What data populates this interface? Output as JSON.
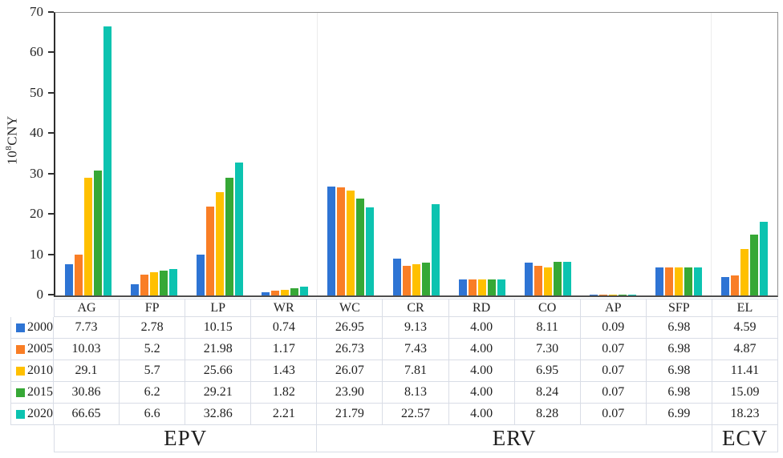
{
  "chart_data": {
    "type": "bar",
    "title": "",
    "ylabel": {
      "base": "10",
      "exp": "8",
      "unit": "CNY"
    },
    "ylim": [
      0,
      70
    ],
    "yticks": [
      0,
      10,
      20,
      30,
      40,
      50,
      60,
      70
    ],
    "grid": "vertical-group-separators-only",
    "legend_position": "table-left-column",
    "categories": [
      "AG",
      "FP",
      "LP",
      "WR",
      "WC",
      "CR",
      "RD",
      "CO",
      "AP",
      "SFP",
      "EL"
    ],
    "series": [
      {
        "name": "2000",
        "color": "#2e74d4",
        "values": [
          7.73,
          2.78,
          10.15,
          0.74,
          26.95,
          9.13,
          4.0,
          8.11,
          0.09,
          6.98,
          4.59
        ],
        "display": [
          "7.73",
          "2.78",
          "10.15",
          "0.74",
          "26.95",
          "9.13",
          "4.00",
          "8.11",
          "0.09",
          "6.98",
          "4.59"
        ]
      },
      {
        "name": "2005",
        "color": "#f97e26",
        "values": [
          10.03,
          5.2,
          21.98,
          1.17,
          26.73,
          7.43,
          4.0,
          7.3,
          0.07,
          6.98,
          4.87
        ],
        "display": [
          "10.03",
          "5.2",
          "21.98",
          "1.17",
          "26.73",
          "7.43",
          "4.00",
          "7.30",
          "0.07",
          "6.98",
          "4.87"
        ]
      },
      {
        "name": "2010",
        "color": "#ffc000",
        "values": [
          29.1,
          5.7,
          25.66,
          1.43,
          26.07,
          7.81,
          4.0,
          6.95,
          0.07,
          6.98,
          11.41
        ],
        "display": [
          "29.1",
          "5.7",
          "25.66",
          "1.43",
          "26.07",
          "7.81",
          "4.00",
          "6.95",
          "0.07",
          "6.98",
          "11.41"
        ]
      },
      {
        "name": "2015",
        "color": "#36a836",
        "values": [
          30.86,
          6.2,
          29.21,
          1.82,
          23.9,
          8.13,
          4.0,
          8.24,
          0.07,
          6.98,
          15.09
        ],
        "display": [
          "30.86",
          "6.2",
          "29.21",
          "1.82",
          "23.90",
          "8.13",
          "4.00",
          "8.24",
          "0.07",
          "6.98",
          "15.09"
        ]
      },
      {
        "name": "2020",
        "color": "#0cc3b0",
        "values": [
          66.65,
          6.6,
          32.86,
          2.21,
          21.79,
          22.57,
          4.0,
          8.28,
          0.07,
          6.99,
          18.23
        ],
        "display": [
          "66.65",
          "6.6",
          "32.86",
          "2.21",
          "21.79",
          "22.57",
          "4.00",
          "8.28",
          "0.07",
          "6.99",
          "18.23"
        ]
      }
    ],
    "groups": [
      {
        "label": "EPV",
        "span": 4
      },
      {
        "label": "ERV",
        "span": 6
      },
      {
        "label": "ECV",
        "span": 1
      }
    ]
  }
}
